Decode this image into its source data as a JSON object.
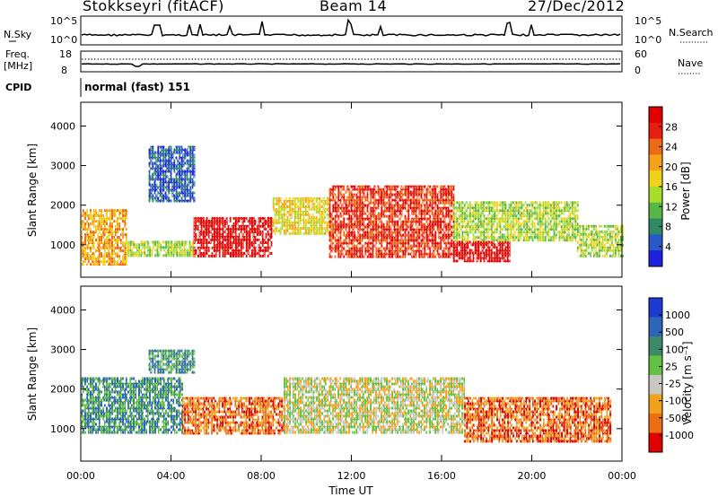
{
  "header": {
    "station": "Stokkseyri (fitACF)",
    "beam": "Beam 14",
    "date": "27/Dec/2012"
  },
  "panels": {
    "nsky": {
      "label": "N.Sky",
      "ytick_top": "10^5",
      "ytick_bottom": "10^0",
      "right_label": "N.Search",
      "right_tick_top": "10^5",
      "right_tick_bottom": "10^0"
    },
    "freq": {
      "label_line1": "Freq.",
      "label_line2": "[MHz]",
      "ytick_top": "18",
      "ytick_bottom": "8",
      "right_label": "Nave",
      "right_tick_top": "60",
      "right_tick_bottom": "0"
    },
    "cpid": {
      "label": "CPID",
      "mode_text": "normal (fast) 151"
    }
  },
  "chart_data": [
    {
      "type": "heatmap",
      "panel": "power",
      "ylabel": "Slant Range [km]",
      "xlabel": "Time UT",
      "x_ticks": [
        "00:00",
        "04:00",
        "08:00",
        "12:00",
        "16:00",
        "20:00",
        "00:00"
      ],
      "x_range_hours": [
        0,
        24
      ],
      "y_ticks": [
        1000,
        2000,
        3000,
        4000
      ],
      "ylim": [
        180,
        4600
      ],
      "colorbar": {
        "label": "Power [dB]",
        "ticks": [
          4,
          8,
          12,
          16,
          20,
          24,
          28
        ],
        "colors": [
          "#1f1fe0",
          "#2a58c8",
          "#2f8a63",
          "#58b646",
          "#a8dd2e",
          "#f0d21a",
          "#f5a21a",
          "#ee6a14",
          "#e81c10",
          "#e00000"
        ]
      },
      "echo_regions": [
        {
          "t0": 0.0,
          "t1": 2.0,
          "r0": 500,
          "r1": 1900,
          "level": 6
        },
        {
          "t0": 2.0,
          "t1": 5.0,
          "r0": 700,
          "r1": 1100,
          "level": 4
        },
        {
          "t0": 3.0,
          "t1": 5.0,
          "r0": 2100,
          "r1": 3500,
          "level": 1
        },
        {
          "t0": 5.0,
          "t1": 8.5,
          "r0": 700,
          "r1": 1700,
          "level": 9
        },
        {
          "t0": 8.5,
          "t1": 11.0,
          "r0": 1300,
          "r1": 2200,
          "level": 5
        },
        {
          "t0": 11.0,
          "t1": 16.5,
          "r0": 700,
          "r1": 2500,
          "level": 8
        },
        {
          "t0": 16.5,
          "t1": 19.0,
          "r0": 600,
          "r1": 1100,
          "level": 9
        },
        {
          "t0": 16.5,
          "t1": 22.0,
          "r0": 1100,
          "r1": 2100,
          "level": 4
        },
        {
          "t0": 22.0,
          "t1": 24.0,
          "r0": 700,
          "r1": 1500,
          "level": 4
        }
      ]
    },
    {
      "type": "heatmap",
      "panel": "velocity",
      "ylabel": "Slant Range [km]",
      "xlabel": "Time UT",
      "x_ticks": [
        "00:00",
        "04:00",
        "08:00",
        "12:00",
        "16:00",
        "20:00",
        "00:00"
      ],
      "x_range_hours": [
        0,
        24
      ],
      "y_ticks": [
        1000,
        2000,
        3000,
        4000
      ],
      "ylim": [
        180,
        4600
      ],
      "colorbar": {
        "label": "Velocity [m s⁻¹]",
        "ticks": [
          1000,
          500,
          100,
          25,
          -25,
          -100,
          -500,
          -1000
        ],
        "colors": [
          "#1c3ad0",
          "#2d66b8",
          "#3d8a6a",
          "#62c144",
          "#c8c8c0",
          "#f0a21a",
          "#ee6e14",
          "#e00000"
        ]
      },
      "echo_regions": [
        {
          "t0": 0.0,
          "t1": 4.5,
          "r0": 900,
          "r1": 2300,
          "velocity": 300
        },
        {
          "t0": 3.0,
          "t1": 5.0,
          "r0": 2400,
          "r1": 3000,
          "velocity": 300
        },
        {
          "t0": 4.5,
          "t1": 9.0,
          "r0": 900,
          "r1": 1800,
          "velocity": -300
        },
        {
          "t0": 9.0,
          "t1": 17.0,
          "r0": 900,
          "r1": 2300,
          "velocity": 0
        },
        {
          "t0": 17.0,
          "t1": 23.5,
          "r0": 700,
          "r1": 1800,
          "velocity": -300
        }
      ]
    }
  ]
}
